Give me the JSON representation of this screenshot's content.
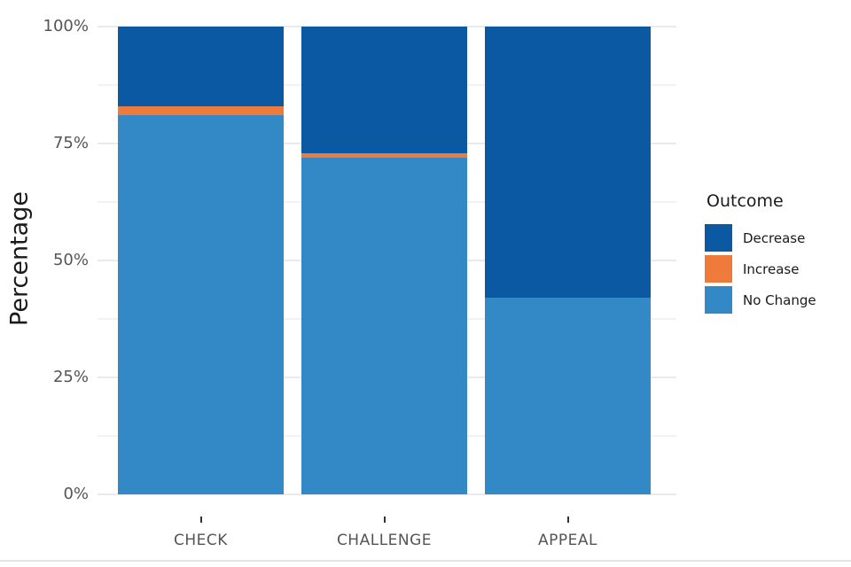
{
  "chart_data": {
    "type": "bar",
    "variant": "stacked-100",
    "title": "",
    "xlabel": "",
    "ylabel": "Percentage",
    "categories": [
      "CHECK",
      "CHALLENGE",
      "APPEAL"
    ],
    "series": [
      {
        "name": "Decrease",
        "color": "#0b59a2",
        "values": [
          17,
          27,
          58
        ]
      },
      {
        "name": "Increase",
        "color": "#ee7b3b",
        "values": [
          2,
          1,
          0
        ]
      },
      {
        "name": "No Change",
        "color": "#3289c6",
        "values": [
          81,
          72,
          42
        ]
      }
    ],
    "y_axis": {
      "min": 0,
      "max": 100,
      "major_ticks": [
        0,
        25,
        50,
        75,
        100
      ],
      "minor_ticks": [
        12.5,
        37.5,
        62.5,
        87.5
      ],
      "tick_labels": [
        "0%",
        "25%",
        "50%",
        "75%",
        "100%"
      ],
      "grid": "on"
    },
    "legend": {
      "title": "Outcome",
      "position": "right",
      "items": [
        "Decrease",
        "Increase",
        "No Change"
      ]
    }
  }
}
